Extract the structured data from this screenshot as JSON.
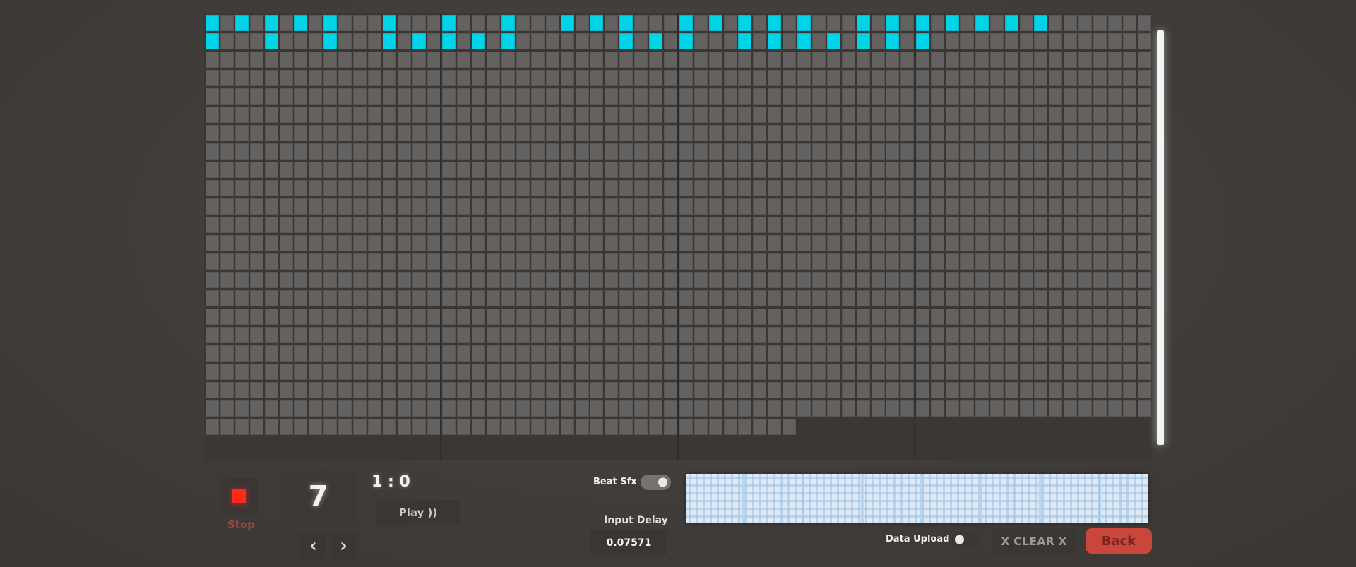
{
  "grid": {
    "columns": 64,
    "rows": 23,
    "last_row_columns": 40,
    "group_size": 16,
    "active_cells": {
      "row_1": [
        0,
        2,
        4,
        6,
        8,
        12,
        16,
        20,
        24,
        26,
        28,
        32,
        34,
        36,
        38,
        40,
        44,
        46,
        48,
        50,
        52,
        54,
        56
      ],
      "row_2": [
        0,
        4,
        8,
        12,
        14,
        16,
        18,
        20,
        28,
        30,
        32,
        36,
        38,
        40,
        42,
        44,
        46,
        48
      ]
    },
    "colors": {
      "active": "#00d4e8",
      "inactive": "#646261"
    }
  },
  "controls": {
    "stop_label": "Stop",
    "stop_color": "#ff2a1a",
    "counter": "7",
    "time": "1 : 0",
    "play_label": "Play ))",
    "prev_label": "‹",
    "next_label": "›",
    "beat_sfx_label": "Beat Sfx",
    "beat_sfx_on": true,
    "input_delay_label": "Input Delay",
    "input_delay_value": "0.07571",
    "data_upload_label": "Data Upload",
    "data_upload_on": false,
    "clear_label": "X CLEAR X",
    "back_label": "Back",
    "back_color": "#c9463d"
  }
}
